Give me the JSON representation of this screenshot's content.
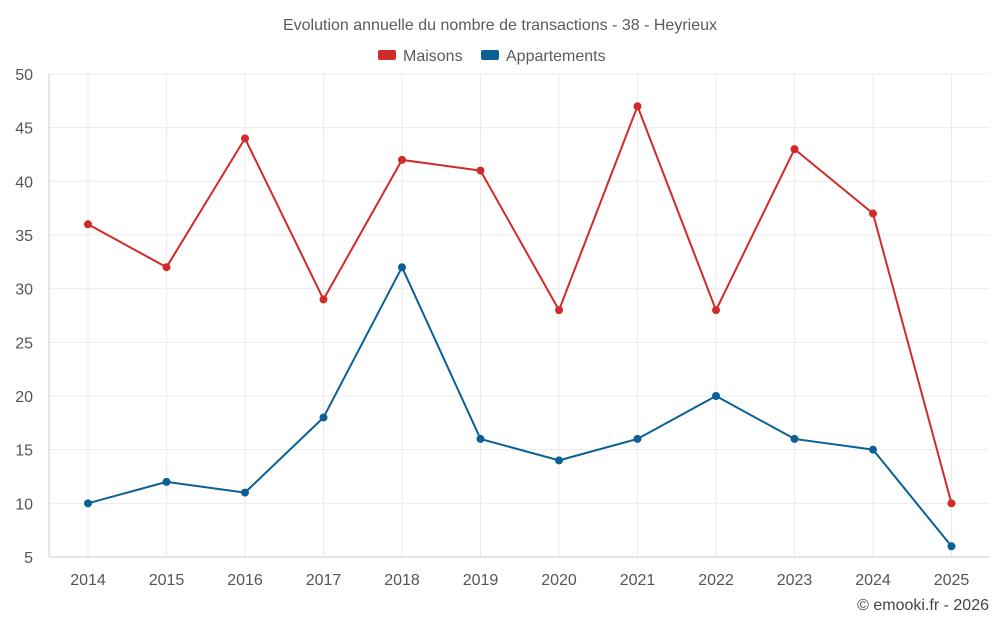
{
  "chart_data": {
    "type": "line",
    "title": "Evolution annuelle du nombre de transactions - 38 - Heyrieux",
    "categories": [
      "2014",
      "2015",
      "2016",
      "2017",
      "2018",
      "2019",
      "2020",
      "2021",
      "2022",
      "2023",
      "2024",
      "2025"
    ],
    "series": [
      {
        "name": "Maisons",
        "color": "#d12a2a",
        "values": [
          36,
          32,
          44,
          29,
          42,
          41,
          28,
          47,
          28,
          43,
          37,
          10
        ]
      },
      {
        "name": "Appartements",
        "color": "#0b6196",
        "values": [
          10,
          12,
          11,
          18,
          32,
          16,
          14,
          16,
          20,
          16,
          15,
          6
        ]
      }
    ],
    "ylim": [
      5,
      50
    ],
    "yticks": [
      5,
      10,
      15,
      20,
      25,
      30,
      35,
      40,
      45,
      50
    ],
    "xlabel": "",
    "ylabel": "",
    "grid": true,
    "legend_position": "top-center",
    "credit": "© emooki.fr - 2026"
  }
}
